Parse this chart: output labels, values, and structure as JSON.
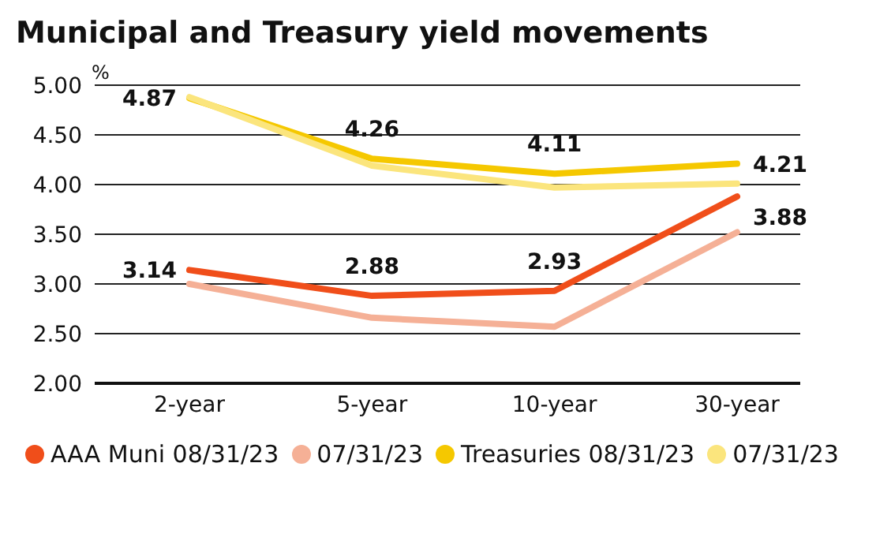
{
  "chart_data": {
    "type": "line",
    "title": "Municipal and Treasury yield movements",
    "ylabel": "%",
    "categories": [
      "2-year",
      "5-year",
      "10-year",
      "30-year"
    ],
    "series": [
      {
        "name": "AAA Muni 08/31/23",
        "color": "#f04e1a",
        "values": [
          3.14,
          2.88,
          2.93,
          3.88
        ],
        "value_labels": [
          "3.14",
          "2.88",
          "2.93",
          "3.88"
        ]
      },
      {
        "name": "07/31/23",
        "color": "#f5b096",
        "values": [
          3.0,
          2.66,
          2.57,
          3.52
        ]
      },
      {
        "name": "Treasuries 08/31/23",
        "color": "#f5c800",
        "values": [
          4.87,
          4.26,
          4.11,
          4.21
        ],
        "value_labels": [
          "4.87",
          "4.26",
          "4.11",
          "4.21"
        ]
      },
      {
        "name": "07/31/23",
        "color": "#fbe57d",
        "values": [
          4.88,
          4.19,
          3.97,
          4.01
        ]
      }
    ],
    "ylim": [
      2,
      5
    ],
    "yticks": [
      {
        "value": 2,
        "label": "2.00"
      },
      {
        "value": 2.5,
        "label": "2.50"
      },
      {
        "value": 3,
        "label": "3.00"
      },
      {
        "value": 3.5,
        "label": "3.50"
      },
      {
        "value": 4,
        "label": "4.00"
      },
      {
        "value": 4.5,
        "label": "4.50"
      },
      {
        "value": 5,
        "label": "5.00"
      }
    ],
    "grid": "y",
    "legend": "bottom",
    "marker": "none",
    "line_style": "solid"
  }
}
